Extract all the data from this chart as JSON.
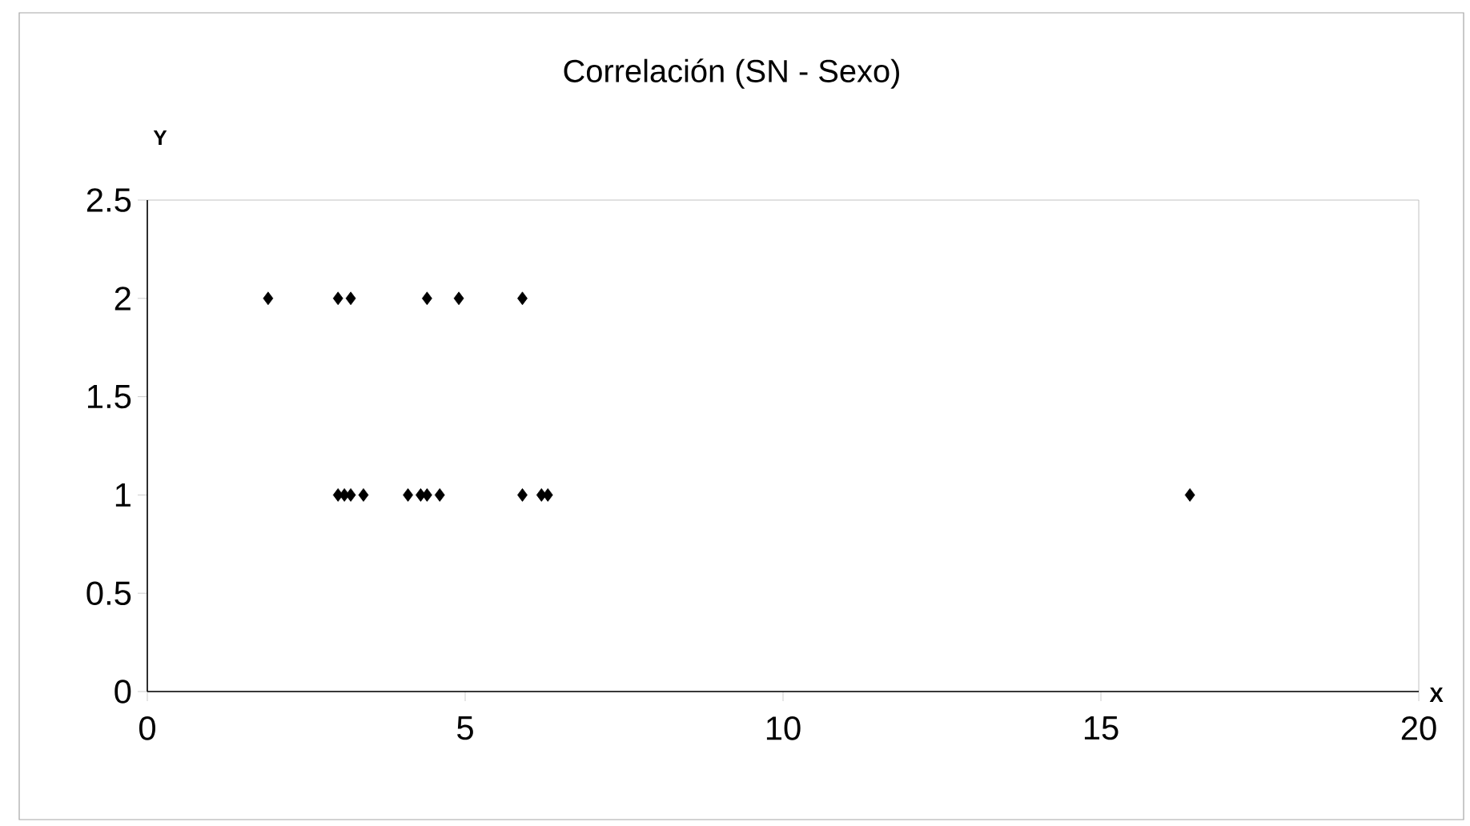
{
  "chart_data": {
    "type": "scatter",
    "title": "Correlación (SN - Sexo)",
    "xlabel": "X",
    "ylabel": "Y",
    "x": [
      1.9,
      3.0,
      3.2,
      4.4,
      4.9,
      5.9,
      3.0,
      3.1,
      3.2,
      3.4,
      4.1,
      4.3,
      4.4,
      4.6,
      5.9,
      6.2,
      6.3,
      16.4
    ],
    "series": [
      {
        "color": "#000000",
        "values": [
          2,
          2,
          2,
          2,
          2,
          2,
          1,
          1,
          1,
          1,
          1,
          1,
          1,
          1,
          1,
          1,
          1,
          1
        ]
      }
    ],
    "xlim": [
      0,
      20
    ],
    "ylim": [
      0,
      2.5
    ],
    "xticks": [
      0,
      5,
      10,
      15,
      20
    ],
    "yticks": [
      0,
      0.5,
      1,
      1.5,
      2,
      2.5
    ],
    "marker": "diamond"
  }
}
